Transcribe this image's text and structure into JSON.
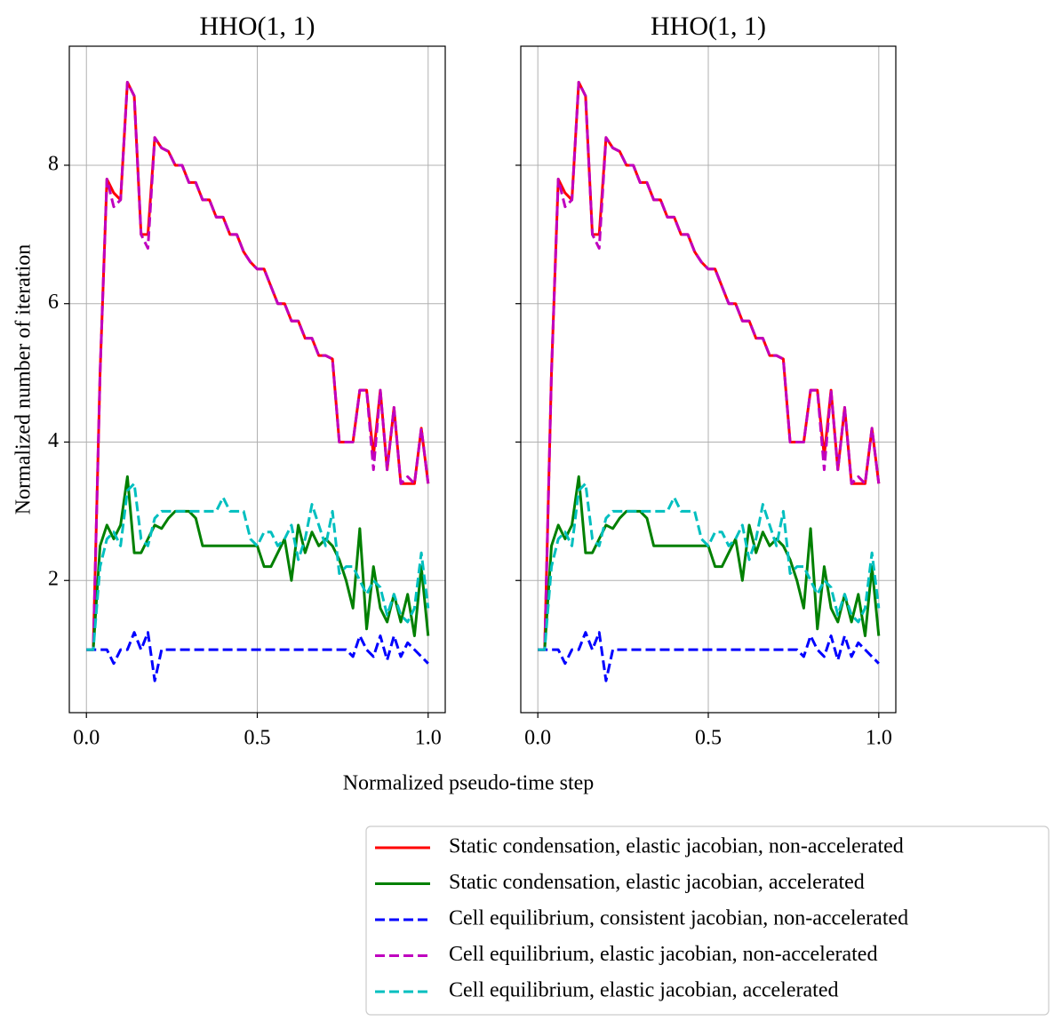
{
  "chart_data": [
    {
      "type": "line",
      "title": "HHO(1, 1)",
      "ylabel": "Normalized number of iteration",
      "x": [
        0,
        0.02,
        0.04,
        0.06,
        0.08,
        0.1,
        0.12,
        0.14,
        0.16,
        0.18,
        0.2,
        0.22,
        0.24,
        0.26,
        0.28,
        0.3,
        0.32,
        0.34,
        0.36,
        0.38,
        0.4,
        0.42,
        0.44,
        0.46,
        0.48,
        0.5,
        0.52,
        0.54,
        0.56,
        0.58,
        0.6,
        0.62,
        0.64,
        0.66,
        0.68,
        0.7,
        0.72,
        0.74,
        0.76,
        0.78,
        0.8,
        0.82,
        0.84,
        0.86,
        0.88,
        0.9,
        0.92,
        0.94,
        0.96,
        0.98,
        1
      ],
      "xlim": [
        -0.05,
        1.05
      ],
      "ylim": [
        0.09,
        9.72
      ],
      "xticks": [
        {
          "value": 0,
          "label": "0.0"
        },
        {
          "value": 0.5,
          "label": "0.5"
        },
        {
          "value": 1,
          "label": "1.0"
        }
      ],
      "yticks": [
        2,
        4,
        6,
        8
      ],
      "grid": true,
      "sharey": false,
      "series": [
        {
          "name": "Static condensation, elastic jacobian, non-accelerated",
          "color": "#ff0000",
          "dashed": false,
          "values": [
            1,
            1,
            5,
            7.8,
            7.6,
            7.5,
            9.2,
            9,
            7,
            7,
            8.4,
            8.25,
            8.2,
            8,
            8,
            7.75,
            7.75,
            7.5,
            7.5,
            7.25,
            7.25,
            7,
            7,
            6.75,
            6.6,
            6.5,
            6.5,
            6.25,
            6,
            6,
            5.75,
            5.75,
            5.5,
            5.5,
            5.25,
            5.25,
            5.2,
            4,
            4,
            4,
            4.75,
            4.75,
            3.8,
            4.75,
            3.6,
            4.5,
            3.4,
            3.4,
            3.4,
            4.2,
            3.4
          ]
        },
        {
          "name": "Static condensation, elastic jacobian, accelerated",
          "color": "#008000",
          "dashed": false,
          "values": [
            1,
            1,
            2.5,
            2.8,
            2.6,
            2.8,
            3.5,
            2.4,
            2.4,
            2.6,
            2.8,
            2.75,
            2.9,
            3,
            3,
            3,
            2.9,
            2.5,
            2.5,
            2.5,
            2.5,
            2.5,
            2.5,
            2.5,
            2.5,
            2.5,
            2.2,
            2.2,
            2.4,
            2.6,
            2.0,
            2.8,
            2.4,
            2.7,
            2.5,
            2.6,
            2.5,
            2.3,
            2.0,
            1.6,
            2.75,
            1.3,
            2.2,
            1.6,
            1.4,
            1.8,
            1.4,
            1.8,
            1.2,
            2.2,
            1.2
          ]
        },
        {
          "name": "Cell equilibrium, consistent jacobian, non-accelerated",
          "color": "#0000ff",
          "dashed": true,
          "values": [
            1,
            1,
            1,
            1,
            0.8,
            1,
            1,
            1.25,
            1,
            1.25,
            0.55,
            1,
            1,
            1,
            1,
            1,
            1,
            1,
            1,
            1,
            1,
            1,
            1,
            1,
            1,
            1,
            1,
            1,
            1,
            1,
            1,
            1,
            1,
            1,
            1,
            1,
            1,
            1,
            1,
            0.9,
            1.2,
            1,
            0.9,
            1.2,
            0.85,
            1.2,
            0.9,
            1.1,
            1,
            0.9,
            0.8
          ]
        },
        {
          "name": "Cell equilibrium, elastic jacobian, non-accelerated",
          "color": "#bf00bf",
          "dashed": true,
          "values": [
            1,
            1,
            5,
            7.8,
            7.4,
            7.5,
            9.2,
            9,
            7,
            6.8,
            8.4,
            8.25,
            8.2,
            8,
            8,
            7.75,
            7.75,
            7.5,
            7.5,
            7.25,
            7.25,
            7,
            7,
            6.75,
            6.6,
            6.5,
            6.5,
            6.25,
            6,
            6,
            5.75,
            5.75,
            5.5,
            5.5,
            5.25,
            5.25,
            5.2,
            4,
            4,
            4,
            4.75,
            4.75,
            3.6,
            4.75,
            3.6,
            4.5,
            3.4,
            3.5,
            3.4,
            4.2,
            3.4
          ]
        },
        {
          "name": "Cell equilibrium, elastic jacobian, accelerated",
          "color": "#00bfbf",
          "dashed": true,
          "values": [
            1,
            1,
            2.2,
            2.6,
            2.7,
            2.5,
            3.3,
            3.4,
            2.6,
            2.5,
            2.9,
            3,
            3,
            3,
            3,
            3,
            3,
            3,
            3,
            3,
            3.2,
            3,
            3,
            3,
            2.6,
            2.5,
            2.7,
            2.7,
            2.5,
            2.6,
            2.8,
            2.3,
            2.6,
            3.1,
            2.8,
            2.5,
            3,
            2.1,
            2.2,
            2.2,
            2.0,
            1.8,
            2.0,
            1.9,
            1.5,
            1.8,
            1.5,
            1.4,
            1.6,
            2.4,
            1.6
          ]
        }
      ]
    },
    {
      "type": "line",
      "title": "HHO(1, 1)",
      "x": [
        0,
        0.02,
        0.04,
        0.06,
        0.08,
        0.1,
        0.12,
        0.14,
        0.16,
        0.18,
        0.2,
        0.22,
        0.24,
        0.26,
        0.28,
        0.3,
        0.32,
        0.34,
        0.36,
        0.38,
        0.4,
        0.42,
        0.44,
        0.46,
        0.48,
        0.5,
        0.52,
        0.54,
        0.56,
        0.58,
        0.6,
        0.62,
        0.64,
        0.66,
        0.68,
        0.7,
        0.72,
        0.74,
        0.76,
        0.78,
        0.8,
        0.82,
        0.84,
        0.86,
        0.88,
        0.9,
        0.92,
        0.94,
        0.96,
        0.98,
        1
      ],
      "xlim": [
        -0.05,
        1.05
      ],
      "ylim": [
        0.09,
        9.72
      ],
      "xticks": [
        {
          "value": 0,
          "label": "0.0"
        },
        {
          "value": 0.5,
          "label": "0.5"
        },
        {
          "value": 1,
          "label": "1.0"
        }
      ],
      "yticks": [
        2,
        4,
        6,
        8
      ],
      "grid": true,
      "sharey": true,
      "series": [
        {
          "name": "Static condensation, elastic jacobian, non-accelerated",
          "color": "#ff0000",
          "dashed": false,
          "values": [
            1,
            1,
            5,
            7.8,
            7.6,
            7.5,
            9.2,
            9,
            7,
            7,
            8.4,
            8.25,
            8.2,
            8,
            8,
            7.75,
            7.75,
            7.5,
            7.5,
            7.25,
            7.25,
            7,
            7,
            6.75,
            6.6,
            6.5,
            6.5,
            6.25,
            6,
            6,
            5.75,
            5.75,
            5.5,
            5.5,
            5.25,
            5.25,
            5.2,
            4,
            4,
            4,
            4.75,
            4.75,
            3.8,
            4.75,
            3.6,
            4.5,
            3.4,
            3.4,
            3.4,
            4.2,
            3.4
          ]
        },
        {
          "name": "Static condensation, elastic jacobian, accelerated",
          "color": "#008000",
          "dashed": false,
          "values": [
            1,
            1,
            2.5,
            2.8,
            2.6,
            2.8,
            3.5,
            2.4,
            2.4,
            2.6,
            2.8,
            2.75,
            2.9,
            3,
            3,
            3,
            2.9,
            2.5,
            2.5,
            2.5,
            2.5,
            2.5,
            2.5,
            2.5,
            2.5,
            2.5,
            2.2,
            2.2,
            2.4,
            2.6,
            2.0,
            2.8,
            2.4,
            2.7,
            2.5,
            2.6,
            2.5,
            2.3,
            2.0,
            1.6,
            2.75,
            1.3,
            2.2,
            1.6,
            1.4,
            1.8,
            1.4,
            1.8,
            1.2,
            2.2,
            1.2
          ]
        },
        {
          "name": "Cell equilibrium, consistent jacobian, non-accelerated",
          "color": "#0000ff",
          "dashed": true,
          "values": [
            1,
            1,
            1,
            1,
            0.8,
            1,
            1,
            1.25,
            1,
            1.25,
            0.55,
            1,
            1,
            1,
            1,
            1,
            1,
            1,
            1,
            1,
            1,
            1,
            1,
            1,
            1,
            1,
            1,
            1,
            1,
            1,
            1,
            1,
            1,
            1,
            1,
            1,
            1,
            1,
            1,
            0.9,
            1.2,
            1,
            0.9,
            1.2,
            0.85,
            1.2,
            0.9,
            1.1,
            1,
            0.9,
            0.8
          ]
        },
        {
          "name": "Cell equilibrium, elastic jacobian, non-accelerated",
          "color": "#bf00bf",
          "dashed": true,
          "values": [
            1,
            1,
            5,
            7.8,
            7.4,
            7.5,
            9.2,
            9,
            7,
            6.8,
            8.4,
            8.25,
            8.2,
            8,
            8,
            7.75,
            7.75,
            7.5,
            7.5,
            7.25,
            7.25,
            7,
            7,
            6.75,
            6.6,
            6.5,
            6.5,
            6.25,
            6,
            6,
            5.75,
            5.75,
            5.5,
            5.5,
            5.25,
            5.25,
            5.2,
            4,
            4,
            4,
            4.75,
            4.75,
            3.6,
            4.75,
            3.6,
            4.5,
            3.4,
            3.5,
            3.4,
            4.2,
            3.4
          ]
        },
        {
          "name": "Cell equilibrium, elastic jacobian, accelerated",
          "color": "#00bfbf",
          "dashed": true,
          "values": [
            1,
            1,
            2.2,
            2.6,
            2.7,
            2.5,
            3.3,
            3.4,
            2.6,
            2.5,
            2.9,
            3,
            3,
            3,
            3,
            3,
            3,
            3,
            3,
            3,
            3.2,
            3,
            3,
            3,
            2.6,
            2.5,
            2.7,
            2.7,
            2.5,
            2.6,
            2.8,
            2.3,
            2.6,
            3.1,
            2.8,
            2.5,
            3,
            2.1,
            2.2,
            2.2,
            2.0,
            1.8,
            2.0,
            1.9,
            1.5,
            1.8,
            1.5,
            1.4,
            1.6,
            2.4,
            1.6
          ]
        }
      ]
    }
  ],
  "xlabel": "Normalized pseudo-time step",
  "legend_loc": "lower right"
}
